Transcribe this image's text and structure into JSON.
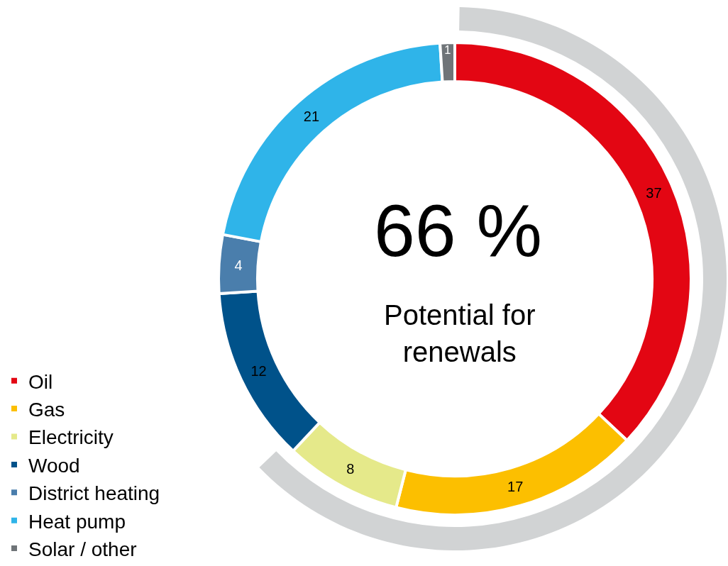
{
  "chart_data": {
    "type": "donut",
    "categories": [
      "Oil",
      "Gas",
      "Electricity",
      "Wood",
      "District heating",
      "Heat pump",
      "Solar / other"
    ],
    "values": [
      37,
      17,
      8,
      12,
      4,
      21,
      1
    ],
    "colors": [
      "#e30613",
      "#fcbf00",
      "#e5e98a",
      "#00528a",
      "#4a7eac",
      "#2fb4e9",
      "#6f7478"
    ],
    "data_labels": true,
    "legend": "bottom left",
    "annotations": [
      "66 %",
      "Potential for renewals"
    ]
  }
}
